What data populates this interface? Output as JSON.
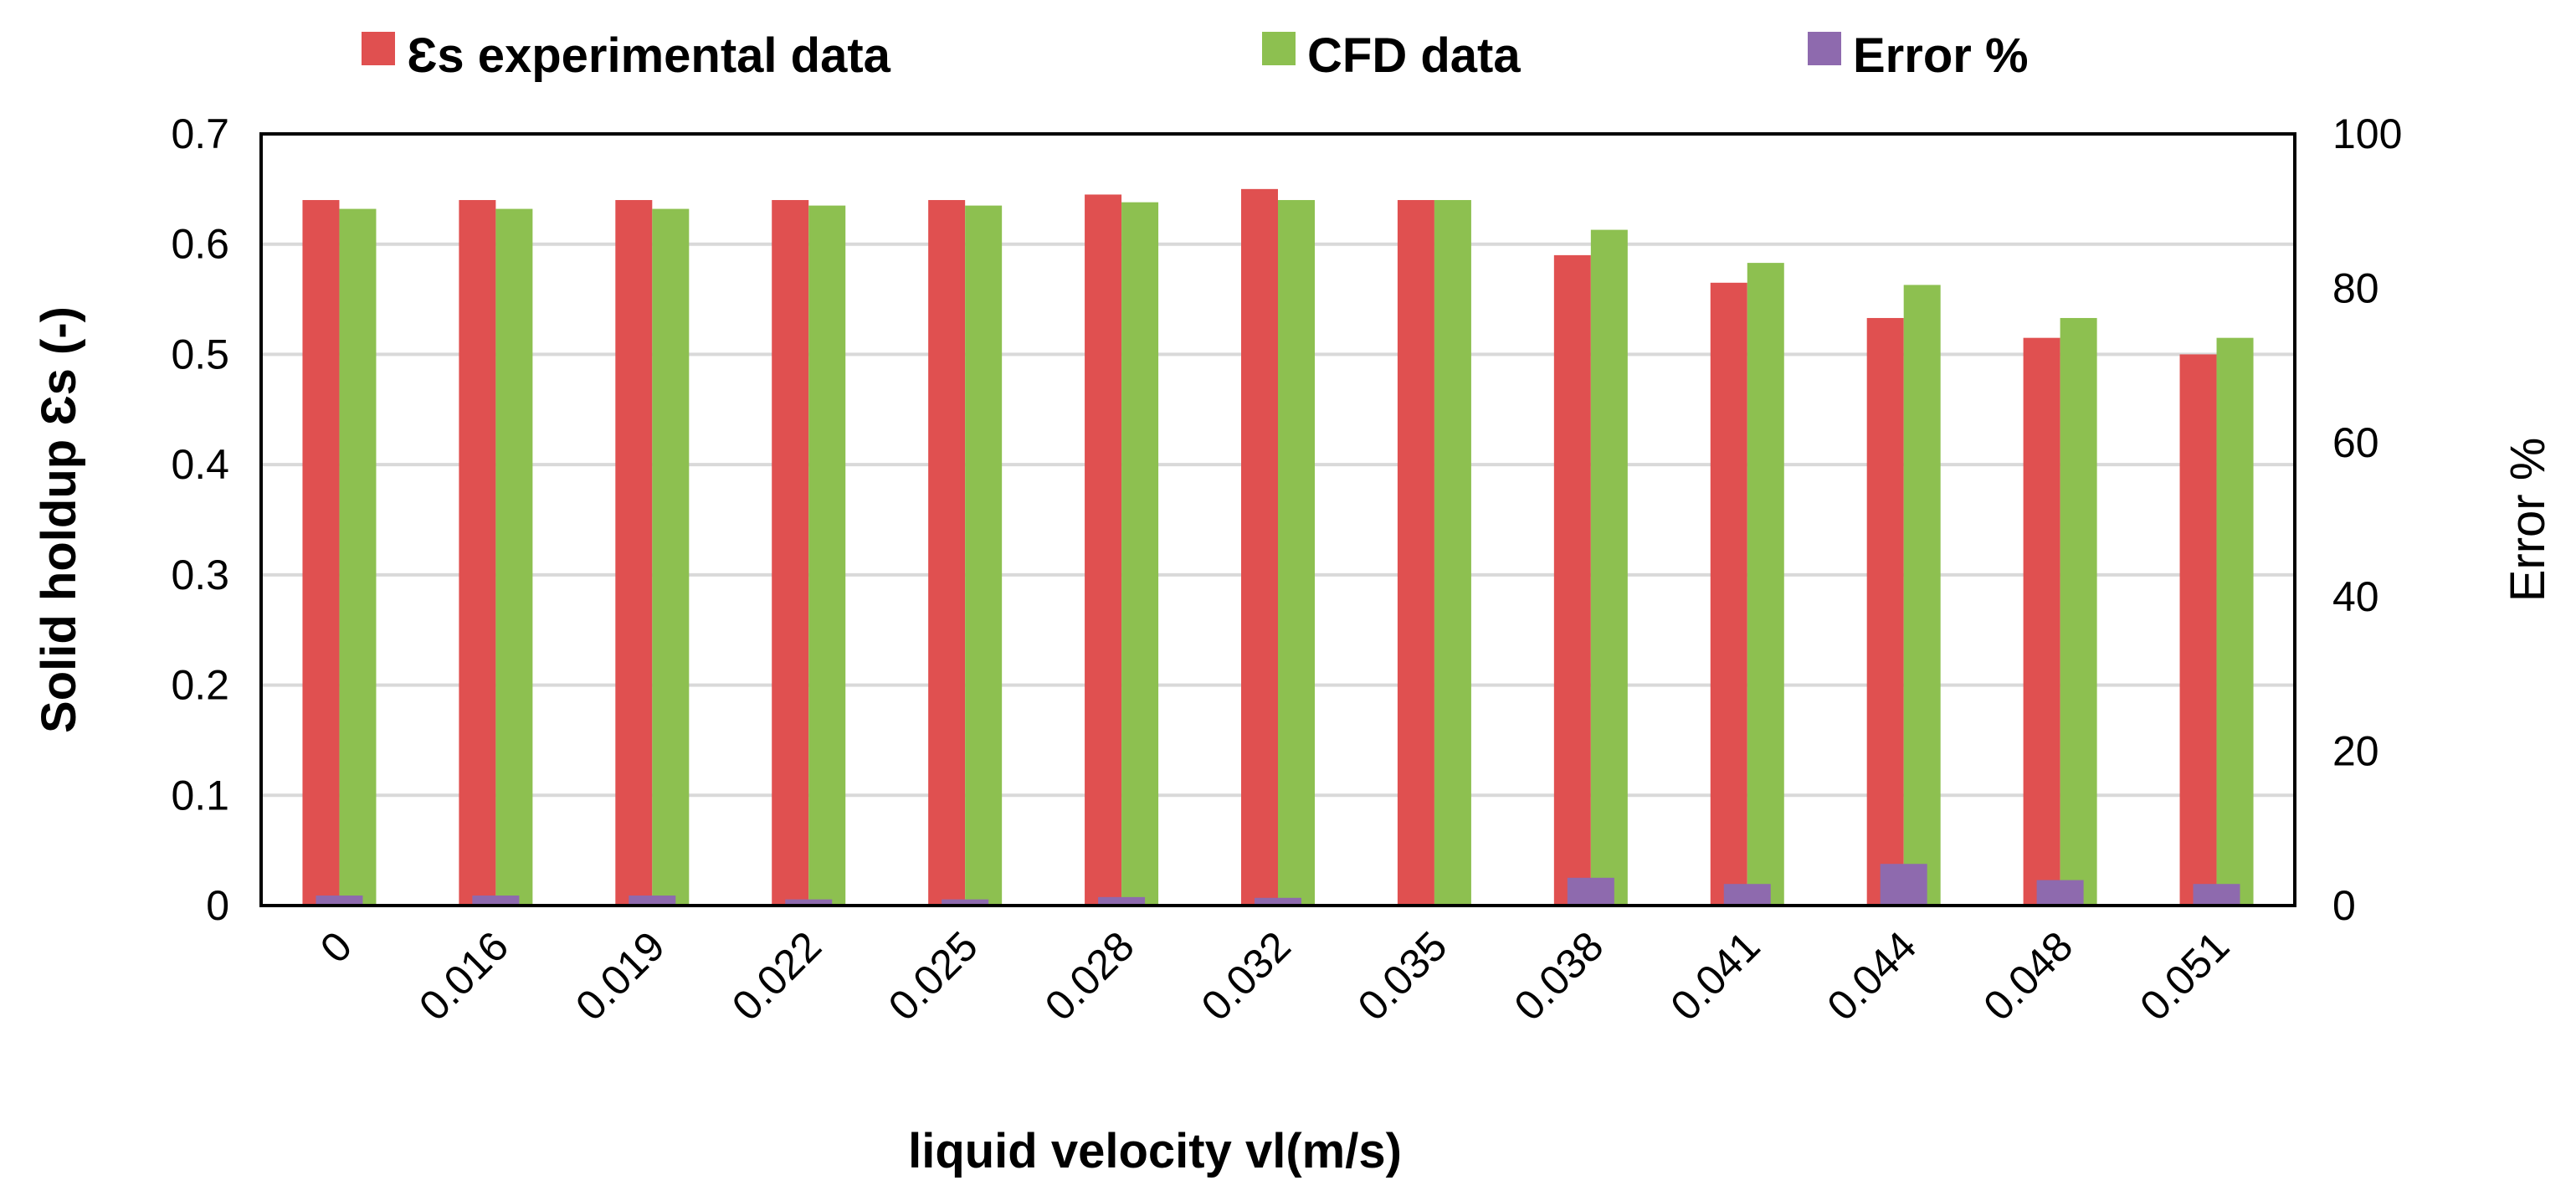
{
  "chart_data": {
    "type": "bar",
    "title": "",
    "xlabel": "liquid velocity vl(m/s)",
    "ylabel": "Solid holdup Ɛs (-)",
    "y2label": "Error %",
    "ylim": [
      0,
      0.7
    ],
    "y2lim": [
      0,
      100
    ],
    "yticks": [
      "0",
      "0.1",
      "0.2",
      "0.3",
      "0.4",
      "0.5",
      "0.6",
      "0.7"
    ],
    "y2ticks": [
      "0",
      "20",
      "40",
      "60",
      "80",
      "100"
    ],
    "grid": true,
    "legend_position": "top",
    "categories": [
      "0",
      "0.016",
      "0.019",
      "0.022",
      "0.025",
      "0.028",
      "0.032",
      "0.035",
      "0.038",
      "0.041",
      "0.044",
      "0.048",
      "0.051"
    ],
    "series": [
      {
        "name": "Ɛs experimental data",
        "axis": "left",
        "color": "#E05050",
        "values": [
          0.64,
          0.64,
          0.64,
          0.64,
          0.64,
          0.645,
          0.65,
          0.64,
          0.59,
          0.565,
          0.533,
          0.515,
          0.5
        ]
      },
      {
        "name": "CFD data",
        "axis": "left",
        "color": "#8DC050",
        "values": [
          0.632,
          0.632,
          0.632,
          0.635,
          0.635,
          0.638,
          0.64,
          0.64,
          0.613,
          0.583,
          0.563,
          0.533,
          0.515
        ]
      },
      {
        "name": "Error %",
        "axis": "right",
        "color": "#8E6AAE",
        "values": [
          1.3,
          1.3,
          1.3,
          0.8,
          0.8,
          1.1,
          1.0,
          0.0,
          3.6,
          2.8,
          5.4,
          3.3,
          2.8
        ]
      }
    ]
  }
}
